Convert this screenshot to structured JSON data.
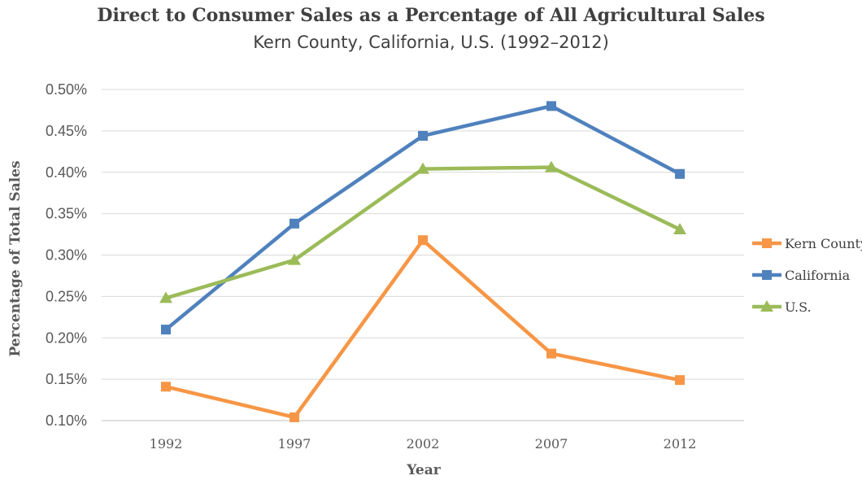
{
  "chart_data": {
    "type": "line",
    "title": "Direct to Consumer Sales as a Percentage of All Agricultural Sales",
    "subtitle": "Kern County, California, U.S. (1992–2012)",
    "xlabel": "Year",
    "ylabel": "Percentage of Total Sales",
    "categories": [
      "1992",
      "1997",
      "2002",
      "2007",
      "2012"
    ],
    "ylim": [
      0.1,
      0.5
    ],
    "yticks": [
      "0.10%",
      "0.15%",
      "0.20%",
      "0.25%",
      "0.30%",
      "0.35%",
      "0.40%",
      "0.45%",
      "0.50%"
    ],
    "grid": true,
    "legend_position": "right",
    "series": [
      {
        "name": "Kern County",
        "color": "#F79646",
        "marker": "square",
        "values": [
          0.141,
          0.104,
          0.318,
          0.181,
          0.149
        ]
      },
      {
        "name": "California",
        "color": "#4F81BD",
        "marker": "square",
        "values": [
          0.21,
          0.338,
          0.444,
          0.48,
          0.398
        ]
      },
      {
        "name": "U.S.",
        "color": "#9BBB59",
        "marker": "triangle",
        "values": [
          0.248,
          0.294,
          0.404,
          0.406,
          0.331
        ]
      }
    ]
  }
}
